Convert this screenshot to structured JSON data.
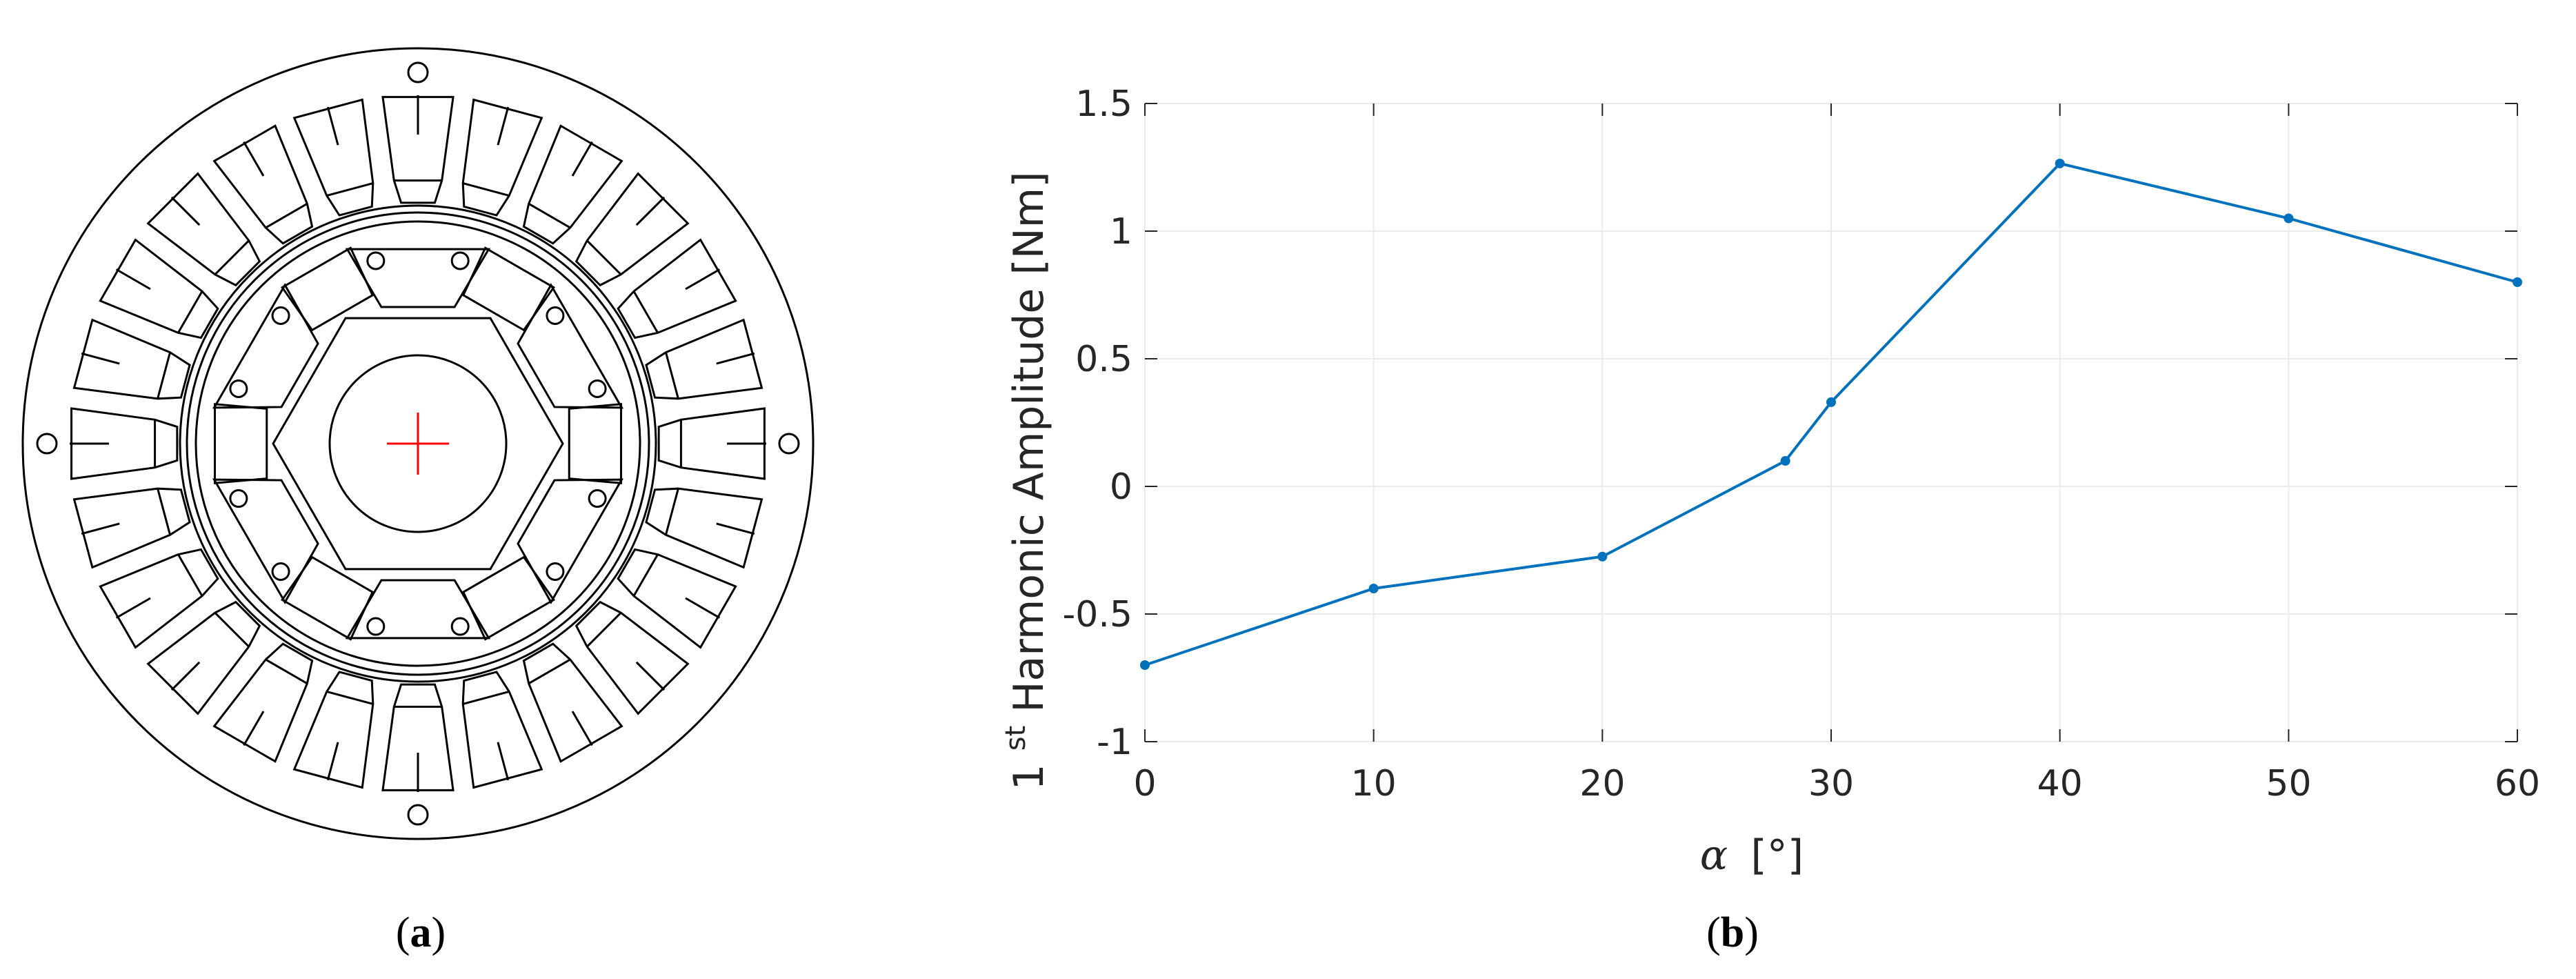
{
  "panels": {
    "a": {
      "caption_open": "(",
      "caption_letter": "a",
      "caption_close": ")"
    },
    "b": {
      "caption_open": "(",
      "caption_letter": "b",
      "caption_close": ")"
    }
  },
  "colors": {
    "line": "#0072BD",
    "grid": "#ebebeb",
    "axis": "#262626",
    "crosshair": "#ff0000",
    "drawing": "#000000"
  },
  "chart_data": {
    "type": "line",
    "title": "",
    "xlabel_symbol": "α",
    "xlabel_unit": "[°]",
    "ylabel_prefix": "1",
    "ylabel_sup": "st",
    "ylabel_text": " Harmonic  Amplitude [Nm]",
    "x": [
      0,
      10,
      20,
      28,
      30,
      40,
      50,
      60
    ],
    "series": [
      {
        "values": [
          -0.7,
          -0.4,
          -0.275,
          0.1,
          0.33,
          1.265,
          1.05,
          0.8
        ]
      }
    ],
    "xlim": [
      0,
      60
    ],
    "ylim": [
      -1,
      1.5
    ],
    "xticks": [
      0,
      10,
      20,
      30,
      40,
      50,
      60
    ],
    "xtick_labels": [
      "0",
      "10",
      "20",
      "30",
      "40",
      "50",
      "60"
    ],
    "yticks": [
      -1,
      -0.5,
      0,
      0.5,
      1,
      1.5
    ],
    "ytick_labels": [
      "-1",
      "-0.5",
      "0",
      "0.5",
      "1",
      "1.5"
    ],
    "grid": true
  }
}
